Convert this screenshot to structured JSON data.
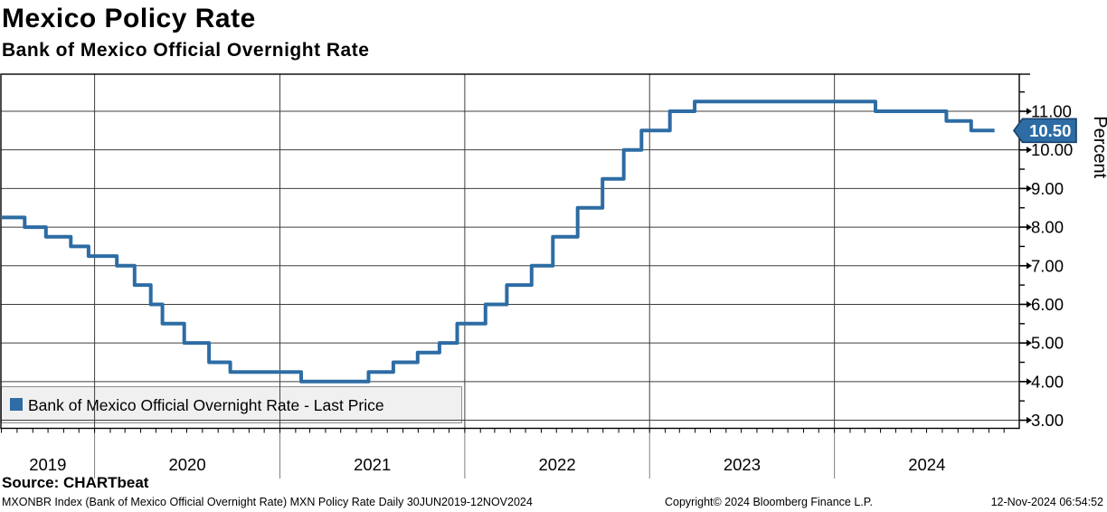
{
  "header": {
    "title": "Mexico Policy Rate",
    "subtitle": "Bank of Mexico Official Overnight Rate"
  },
  "source_line": "Source: CHARTbeat",
  "footer": {
    "left": "MXONBR Index (Bank of Mexico Official Overnight Rate) MXN Policy Rate  Daily 30JUN2019-12NOV2024",
    "center": "Copyright© 2024 Bloomberg Finance L.P.",
    "right": "12-Nov-2024 06:54:52"
  },
  "legend": {
    "marker": "blue-square",
    "label": "Bank of Mexico Official Overnight Rate - Last Price"
  },
  "last_price_badge": {
    "value": "10.50",
    "fill": "#2d6ca4",
    "border": "#16406b",
    "text_color": "#ffffff"
  },
  "colors": {
    "line": "#2d6ca4",
    "grid": "#3f3f3f",
    "axis": "#000000",
    "legend_bg": "#f0f0f0",
    "legend_border": "#8f8f8f",
    "year_separator": "#7f7f7f"
  },
  "chart_data": {
    "type": "line",
    "line_style": "step-after",
    "title": "Mexico Policy Rate",
    "x_axis": {
      "start": "2019-06-30",
      "end": "2024-12-31",
      "tick_labels": [
        "2019",
        "2020",
        "2021",
        "2022",
        "2023",
        "2024"
      ],
      "minor_ticks": "monthly"
    },
    "y_axis": {
      "label": "Percent",
      "side": "right",
      "major_ticks": [
        3,
        4,
        5,
        6,
        7,
        8,
        9,
        10,
        11
      ],
      "minor_tick_step": 0.5,
      "range": [
        2.79,
        11.96
      ],
      "tick_format": "0.00"
    },
    "last_value": 10.5,
    "series": [
      {
        "name": "Bank of Mexico Official Overnight Rate - Last Price",
        "color": "#2d6ca4",
        "points": [
          [
            "2019-06-30",
            8.25
          ],
          [
            "2019-08-16",
            8.0
          ],
          [
            "2019-09-27",
            7.75
          ],
          [
            "2019-11-15",
            7.5
          ],
          [
            "2019-12-20",
            7.25
          ],
          [
            "2020-02-14",
            7.0
          ],
          [
            "2020-03-20",
            6.5
          ],
          [
            "2020-04-21",
            6.0
          ],
          [
            "2020-05-14",
            5.5
          ],
          [
            "2020-06-26",
            5.0
          ],
          [
            "2020-08-14",
            4.5
          ],
          [
            "2020-09-25",
            4.25
          ],
          [
            "2021-02-12",
            4.0
          ],
          [
            "2021-06-25",
            4.25
          ],
          [
            "2021-08-13",
            4.5
          ],
          [
            "2021-09-30",
            4.75
          ],
          [
            "2021-11-12",
            5.0
          ],
          [
            "2021-12-17",
            5.5
          ],
          [
            "2022-02-11",
            6.0
          ],
          [
            "2022-03-25",
            6.5
          ],
          [
            "2022-05-13",
            7.0
          ],
          [
            "2022-06-24",
            7.75
          ],
          [
            "2022-08-12",
            8.5
          ],
          [
            "2022-09-30",
            9.25
          ],
          [
            "2022-11-11",
            10.0
          ],
          [
            "2022-12-16",
            10.5
          ],
          [
            "2023-02-10",
            11.0
          ],
          [
            "2023-03-31",
            11.25
          ],
          [
            "2024-03-22",
            11.0
          ],
          [
            "2024-08-09",
            10.75
          ],
          [
            "2024-09-27",
            10.5
          ],
          [
            "2024-11-12",
            10.5
          ]
        ]
      }
    ]
  }
}
